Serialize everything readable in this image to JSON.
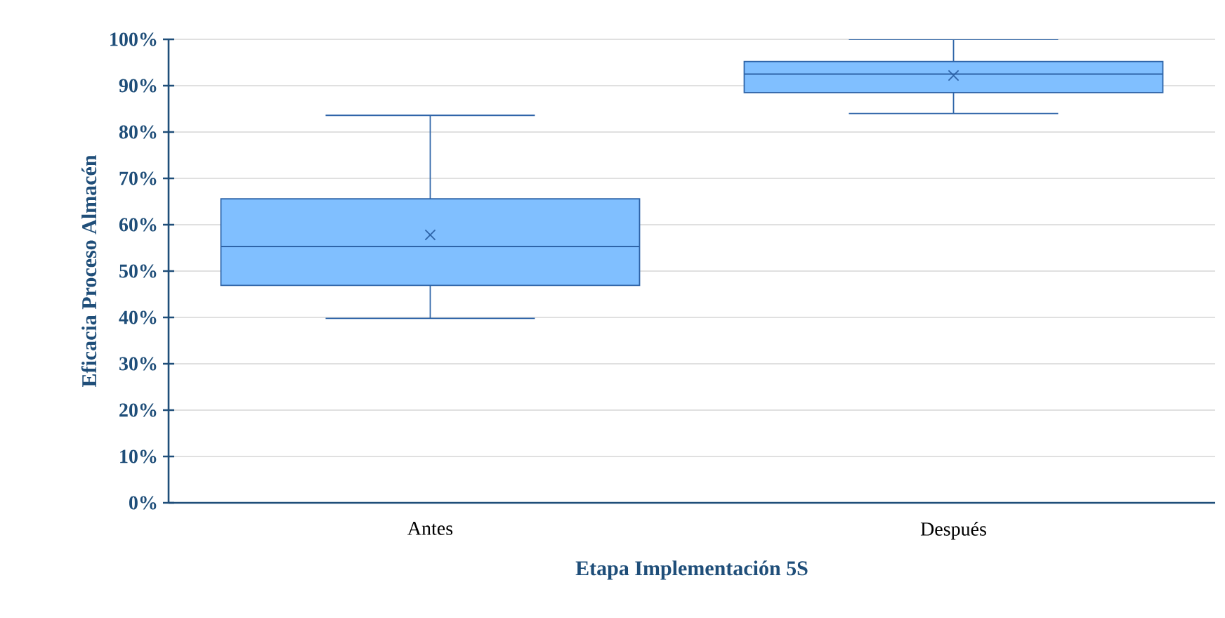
{
  "chart_data": {
    "type": "box",
    "xlabel": "Etapa Implementación 5S",
    "ylabel": "Eficacia Proceso Almacén",
    "categories": [
      "Antes",
      "Después"
    ],
    "boxes": [
      {
        "low": 39.8,
        "q1": 46.9,
        "median": 55.3,
        "q3": 65.6,
        "high": 83.6,
        "mean": 57.8
      },
      {
        "low": 84.0,
        "q1": 88.5,
        "median": 92.5,
        "q3": 95.2,
        "high": 100,
        "mean": 92.2
      }
    ],
    "color": "#80bfff",
    "ylim": [
      0,
      100
    ],
    "yticks": [
      {
        "value": 0,
        "label": "0%"
      },
      {
        "value": 10,
        "label": "10%"
      },
      {
        "value": 20,
        "label": "20%"
      },
      {
        "value": 30,
        "label": "30%"
      },
      {
        "value": 40,
        "label": "40%"
      },
      {
        "value": 50,
        "label": "50%"
      },
      {
        "value": 60,
        "label": "60%"
      },
      {
        "value": 70,
        "label": "70%"
      },
      {
        "value": 80,
        "label": "80%"
      },
      {
        "value": 90,
        "label": "90%"
      },
      {
        "value": 100,
        "label": "100%"
      }
    ],
    "grid": "y"
  }
}
